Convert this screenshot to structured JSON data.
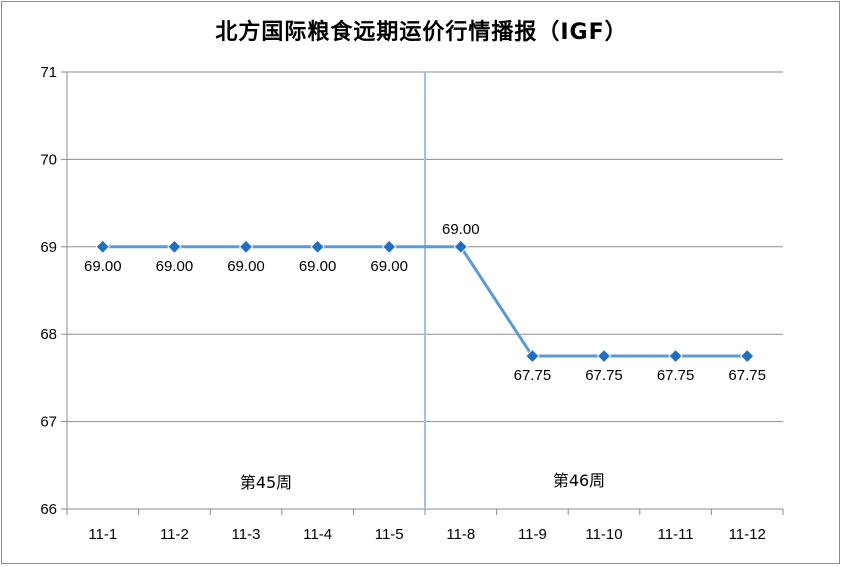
{
  "chart_data": {
    "type": "line",
    "title": "北方国际粮食远期运价行情播报（IGF）",
    "categories": [
      "11-1",
      "11-2",
      "11-3",
      "11-4",
      "11-5",
      "11-8",
      "11-9",
      "11-10",
      "11-11",
      "11-12"
    ],
    "series": [
      {
        "values": [
          69.0,
          69.0,
          69.0,
          69.0,
          69.0,
          69.0,
          67.75,
          67.75,
          67.75,
          67.75
        ],
        "labels": [
          "69.00",
          "69.00",
          "69.00",
          "69.00",
          "69.00",
          "69.00",
          "67.75",
          "67.75",
          "67.75",
          "67.75"
        ],
        "color": "#5b9bd5",
        "marker_color": "#1f6fc5"
      }
    ],
    "ylim": [
      66,
      71
    ],
    "yticks": [
      "66",
      "67",
      "68",
      "69",
      "70",
      "71"
    ],
    "grid": true,
    "divider_after_category": 4,
    "divider_color": "#9dc3e6",
    "annotations": [
      "第45周",
      "第46周"
    ]
  }
}
